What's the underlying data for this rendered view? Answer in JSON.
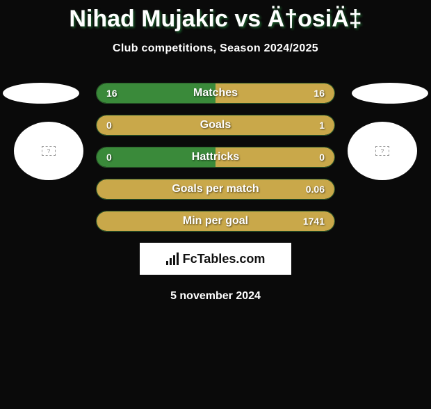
{
  "title": "Nihad Mujakic vs Ä†osiÄ‡",
  "subtitle": "Club competitions, Season 2024/2025",
  "date": "5 november 2024",
  "logo_text": "FcTables.com",
  "colors": {
    "background": "#0a0a0a",
    "side_shape": "#ffffff",
    "text": "#ffffff",
    "title_shadow": "#1a5a2a",
    "bar_green": "#3a8a3a",
    "bar_yellow": "#c9a84a",
    "bar_border": "#2a5a2a",
    "logo_bg": "#ffffff",
    "logo_text": "#111111"
  },
  "flag_placeholder": "?",
  "bars": [
    {
      "label": "Matches",
      "left_value": "16",
      "right_value": "16",
      "left_raw": 16,
      "right_raw": 16,
      "left_pct": 50,
      "right_pct": 50,
      "left_color": "#3a8a3a",
      "right_color": "#c9a84a"
    },
    {
      "label": "Goals",
      "left_value": "0",
      "right_value": "1",
      "left_raw": 0,
      "right_raw": 1,
      "left_pct": 0,
      "right_pct": 100,
      "left_color": "#3a8a3a",
      "right_color": "#c9a84a"
    },
    {
      "label": "Hattricks",
      "left_value": "0",
      "right_value": "0",
      "left_raw": 0,
      "right_raw": 0,
      "left_pct": 50,
      "right_pct": 50,
      "left_color": "#3a8a3a",
      "right_color": "#c9a84a"
    },
    {
      "label": "Goals per match",
      "left_value": "",
      "right_value": "0.06",
      "left_raw": 0,
      "right_raw": 0.06,
      "left_pct": 0,
      "right_pct": 100,
      "left_color": "#3a8a3a",
      "right_color": "#c9a84a"
    },
    {
      "label": "Min per goal",
      "left_value": "",
      "right_value": "1741",
      "left_raw": 0,
      "right_raw": 1741,
      "left_pct": 0,
      "right_pct": 100,
      "left_color": "#3a8a3a",
      "right_color": "#c9a84a"
    }
  ]
}
